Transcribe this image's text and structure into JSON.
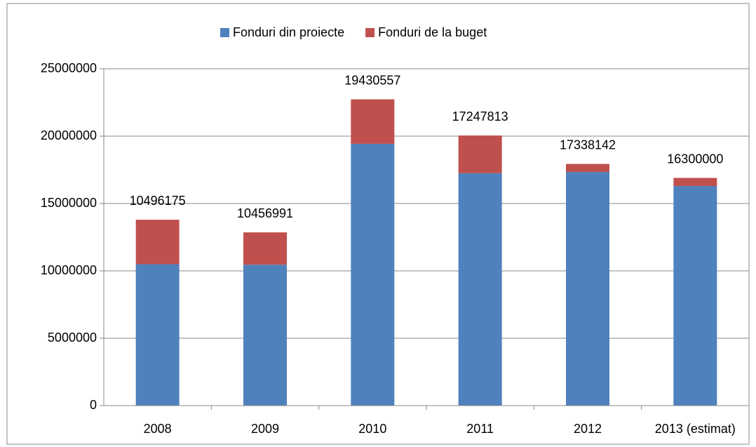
{
  "chart_data": {
    "type": "stacked_bar",
    "categories": [
      "2008",
      "2009",
      "2010",
      "2011",
      "2012",
      "2013 (estimat)"
    ],
    "series": [
      {
        "name": "Fonduri din proiecte",
        "color": "#4f81bd",
        "values": [
          10496175,
          10456991,
          19430557,
          17247813,
          17338142,
          16300000
        ]
      },
      {
        "name": "Fonduri de la buget",
        "color": "#c0504d",
        "values": [
          3300000,
          2400000,
          3300000,
          2800000,
          600000,
          600000
        ]
      }
    ],
    "data_labels_series": 0,
    "ylim": [
      0,
      25000000
    ],
    "yticks": [
      0,
      5000000,
      10000000,
      15000000,
      20000000,
      25000000
    ],
    "grid": true,
    "legend": "top"
  }
}
